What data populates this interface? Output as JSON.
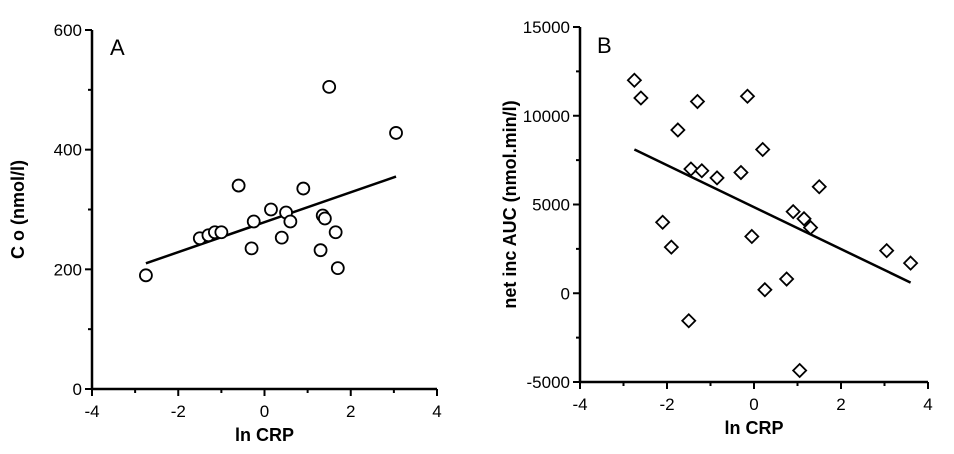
{
  "chart_data": [
    {
      "type": "scatter",
      "panel_label": "A",
      "xlabel": "ln CRP",
      "ylabel": "C o (nmol/l)",
      "xlim": [
        -4,
        4
      ],
      "ylim": [
        0,
        600
      ],
      "xticks": [
        -4,
        -2,
        0,
        2,
        4
      ],
      "yticks": [
        0,
        200,
        400,
        600
      ],
      "marker": "circle",
      "grid": false,
      "points": [
        {
          "x": -2.75,
          "y": 190
        },
        {
          "x": -1.5,
          "y": 252
        },
        {
          "x": -1.3,
          "y": 257
        },
        {
          "x": -1.15,
          "y": 262
        },
        {
          "x": -1.0,
          "y": 262
        },
        {
          "x": -0.6,
          "y": 340
        },
        {
          "x": -0.3,
          "y": 235
        },
        {
          "x": -0.25,
          "y": 280
        },
        {
          "x": 0.15,
          "y": 300
        },
        {
          "x": 0.4,
          "y": 253
        },
        {
          "x": 0.5,
          "y": 295
        },
        {
          "x": 0.6,
          "y": 280
        },
        {
          "x": 0.9,
          "y": 335
        },
        {
          "x": 1.3,
          "y": 232
        },
        {
          "x": 1.35,
          "y": 290
        },
        {
          "x": 1.4,
          "y": 285
        },
        {
          "x": 1.5,
          "y": 505
        },
        {
          "x": 1.65,
          "y": 262
        },
        {
          "x": 1.7,
          "y": 202
        },
        {
          "x": 3.05,
          "y": 428
        }
      ],
      "trendline": [
        {
          "x": -2.75,
          "y": 210
        },
        {
          "x": 3.05,
          "y": 355
        }
      ]
    },
    {
      "type": "scatter",
      "panel_label": "B",
      "xlabel": "ln CRP",
      "ylabel": "net inc AUC (nmol.min/l)",
      "xlim": [
        -4,
        4
      ],
      "ylim": [
        -5000,
        15000
      ],
      "xticks": [
        -4,
        -2,
        0,
        2,
        4
      ],
      "yticks": [
        -5000,
        0,
        5000,
        10000,
        15000
      ],
      "marker": "diamond",
      "grid": false,
      "points": [
        {
          "x": -2.75,
          "y": 12000
        },
        {
          "x": -2.6,
          "y": 11000
        },
        {
          "x": -2.1,
          "y": 4000
        },
        {
          "x": -1.9,
          "y": 2600
        },
        {
          "x": -1.75,
          "y": 9200
        },
        {
          "x": -1.5,
          "y": -1550
        },
        {
          "x": -1.45,
          "y": 7000
        },
        {
          "x": -1.3,
          "y": 10800
        },
        {
          "x": -1.2,
          "y": 6900
        },
        {
          "x": -0.85,
          "y": 6500
        },
        {
          "x": -0.3,
          "y": 6800
        },
        {
          "x": -0.15,
          "y": 11100
        },
        {
          "x": -0.05,
          "y": 3200
        },
        {
          "x": 0.2,
          "y": 8100
        },
        {
          "x": 0.25,
          "y": 200
        },
        {
          "x": 0.75,
          "y": 800
        },
        {
          "x": 0.9,
          "y": 4600
        },
        {
          "x": 1.05,
          "y": -4350
        },
        {
          "x": 1.15,
          "y": 4200
        },
        {
          "x": 1.3,
          "y": 3700
        },
        {
          "x": 1.5,
          "y": 6000
        },
        {
          "x": 3.05,
          "y": 2400
        },
        {
          "x": 3.6,
          "y": 1700
        }
      ],
      "trendline": [
        {
          "x": -2.75,
          "y": 8100
        },
        {
          "x": 3.6,
          "y": 600
        }
      ]
    }
  ]
}
